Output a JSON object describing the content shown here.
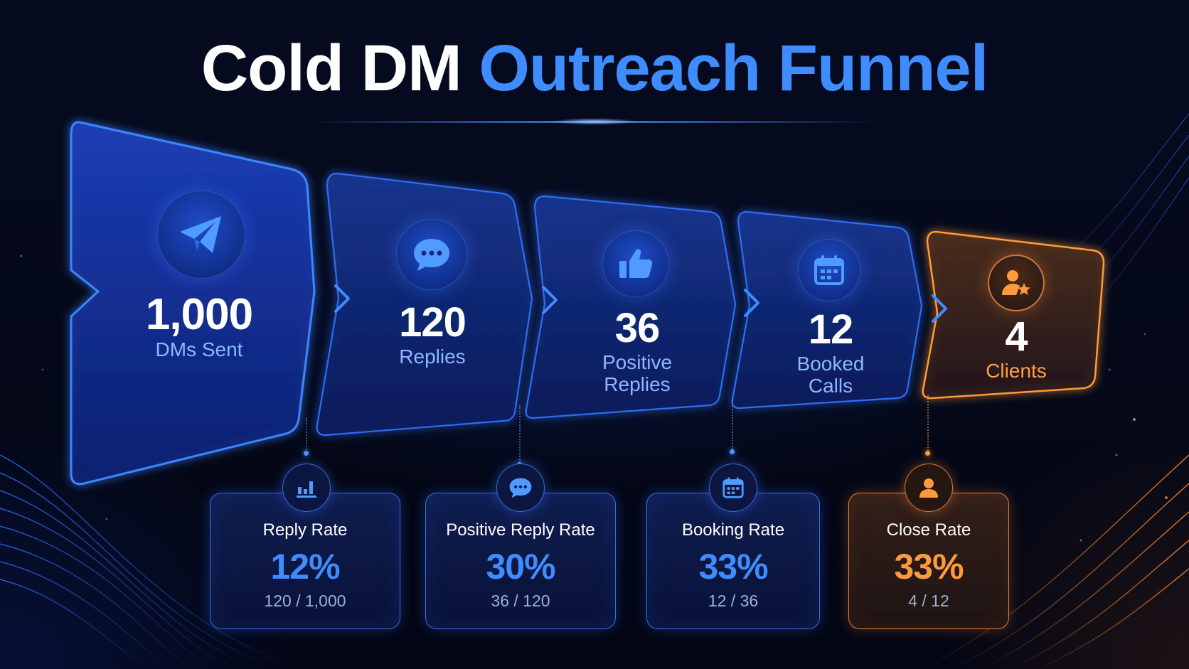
{
  "title": {
    "part1": "Cold DM",
    "part2": "Outreach Funnel"
  },
  "stages": [
    {
      "number": "1,000",
      "label_line1": "DMs Sent",
      "label_line2": "",
      "icon": "paper-plane-icon"
    },
    {
      "number": "120",
      "label_line1": "Replies",
      "label_line2": "",
      "icon": "chat-bubble-icon"
    },
    {
      "number": "36",
      "label_line1": "Positive",
      "label_line2": "Replies",
      "icon": "thumbs-up-icon"
    },
    {
      "number": "12",
      "label_line1": "Booked",
      "label_line2": "Calls",
      "icon": "calendar-icon"
    },
    {
      "number": "4",
      "label_line1": "Clients",
      "label_line2": "",
      "icon": "user-star-icon"
    }
  ],
  "rates": [
    {
      "label": "Reply Rate",
      "value": "12%",
      "fraction": "120 / 1,000",
      "icon": "bar-chart-icon"
    },
    {
      "label": "Positive Reply Rate",
      "value": "30%",
      "fraction": "36 / 120",
      "icon": "chat-bubble-icon"
    },
    {
      "label": "Booking Rate",
      "value": "33%",
      "fraction": "12 / 36",
      "icon": "calendar-icon"
    },
    {
      "label": "Close Rate",
      "value": "33%",
      "fraction": "4 / 12",
      "icon": "user-icon"
    }
  ],
  "colors": {
    "accent_blue": "#3f8cff",
    "accent_orange": "#ff9a3d",
    "background": "#04081a"
  }
}
